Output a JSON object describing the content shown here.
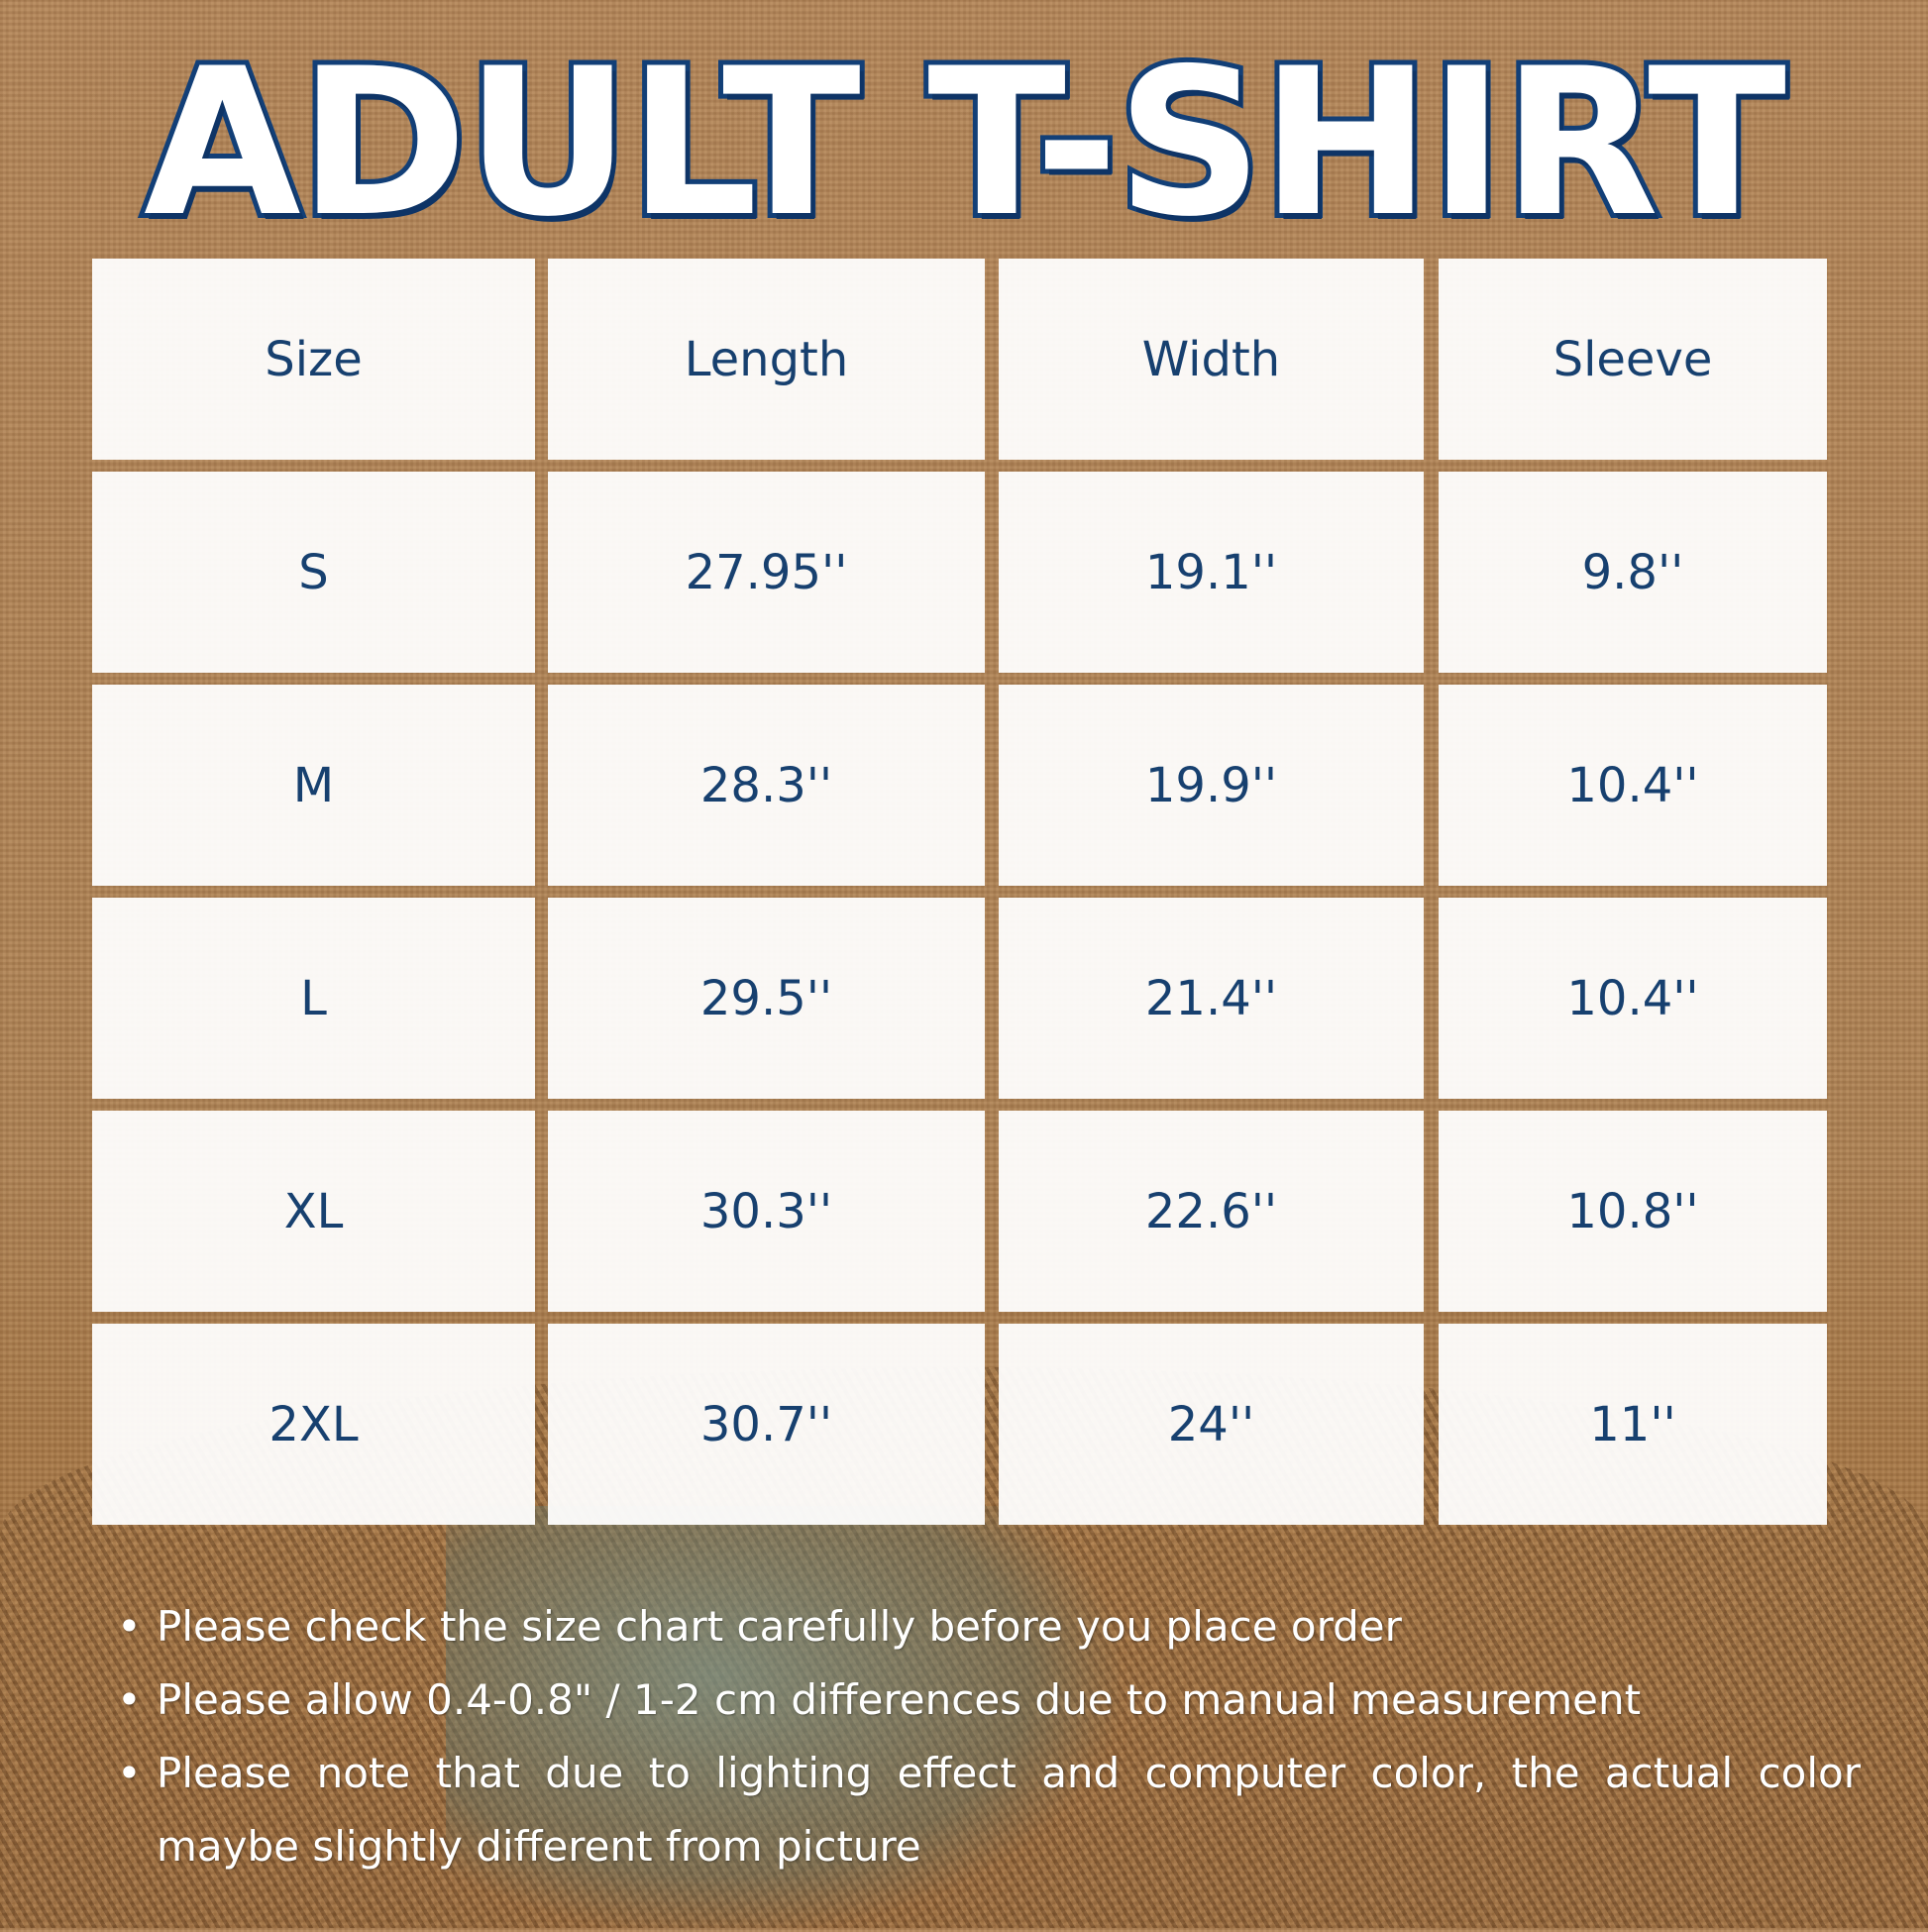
{
  "title": "ADULT T-SHIRT",
  "colors": {
    "text": "#17406f",
    "title_outline": "#123f77",
    "background": "#b08256"
  },
  "table": {
    "headers": [
      "Size",
      "Length",
      "Width",
      "Sleeve"
    ],
    "rows": [
      [
        "S",
        "27.95''",
        "19.1''",
        "9.8''"
      ],
      [
        "M",
        "28.3''",
        "19.9''",
        "10.4''"
      ],
      [
        "L",
        "29.5''",
        "21.4''",
        "10.4''"
      ],
      [
        "XL",
        "30.3''",
        "22.6''",
        "10.8''"
      ],
      [
        "2XL",
        "30.7''",
        "24''",
        "11''"
      ]
    ]
  },
  "notes": [
    "Please check the size chart carefully before you place order",
    "Please allow 0.4-0.8\" / 1-2 cm differences due to manual measurement",
    "Please note that due to lighting effect and computer color, the actual color maybe slightly different from picture"
  ]
}
